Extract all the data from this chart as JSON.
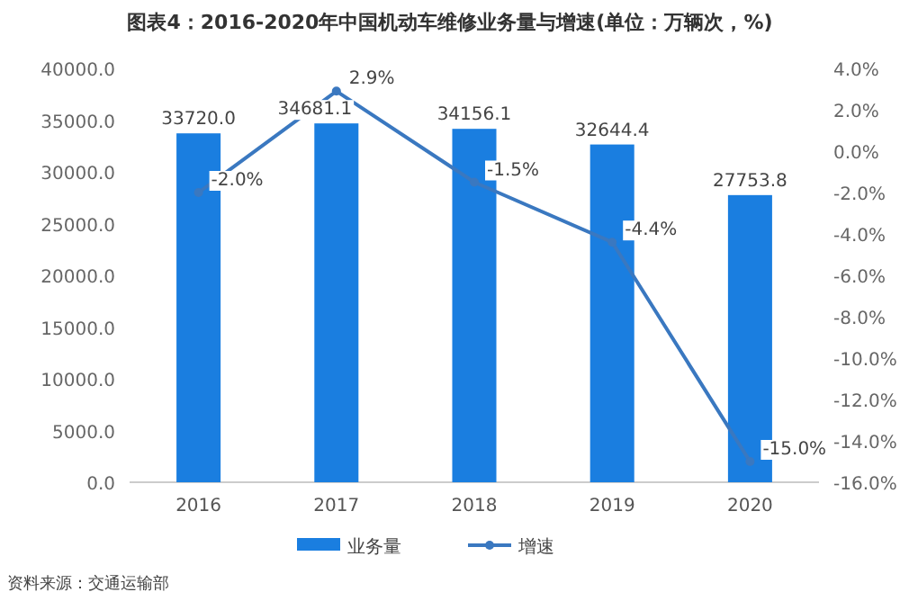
{
  "chart_data": {
    "type": "bar",
    "title": "图表4：2016-2020年中国机动车维修业务量与增速(单位：万辆次，%)",
    "categories": [
      "2016",
      "2017",
      "2018",
      "2019",
      "2020"
    ],
    "series": [
      {
        "name": "业务量",
        "color": "#1a7ee0",
        "values": [
          33720.0,
          34681.1,
          34156.1,
          32644.4,
          27753.8
        ],
        "value_labels": [
          "33720.0",
          "34681.1",
          "34156.1",
          "32644.4",
          "27753.8"
        ]
      },
      {
        "name": "增速",
        "type": "line",
        "axis": "y2",
        "color": "#3a78c0",
        "marker": "circle",
        "values": [
          -2.0,
          2.9,
          -1.5,
          -4.4,
          -15.0
        ],
        "value_labels": [
          "-2.0%",
          "2.9%",
          "-1.5%",
          "-4.4%",
          "-15.0%"
        ]
      }
    ],
    "ylim": [
      0,
      40000
    ],
    "yticks": [
      {
        "value": 0,
        "label": "0.0"
      },
      {
        "value": 5000,
        "label": "5000.0"
      },
      {
        "value": 10000,
        "label": "10000.0"
      },
      {
        "value": 15000,
        "label": "15000.0"
      },
      {
        "value": 20000,
        "label": "20000.0"
      },
      {
        "value": 25000,
        "label": "25000.0"
      },
      {
        "value": 30000,
        "label": "30000.0"
      },
      {
        "value": 35000,
        "label": "35000.0"
      },
      {
        "value": 40000,
        "label": "40000.0"
      }
    ],
    "y2lim": [
      -16,
      4
    ],
    "y2ticks": [
      {
        "value": -16,
        "label": "-16.0%"
      },
      {
        "value": -14,
        "label": "-14.0%"
      },
      {
        "value": -12,
        "label": "-12.0%"
      },
      {
        "value": -10,
        "label": "-10.0%"
      },
      {
        "value": -8,
        "label": "-8.0%"
      },
      {
        "value": -6,
        "label": "-6.0%"
      },
      {
        "value": -4,
        "label": "-4.0%"
      },
      {
        "value": -2,
        "label": "-2.0%"
      },
      {
        "value": 0,
        "label": "0.0%"
      },
      {
        "value": 2,
        "label": "2.0%"
      },
      {
        "value": 4,
        "label": "4.0%"
      }
    ],
    "legend": "bottom",
    "annotations": [
      "资料来源：交通运输部"
    ]
  }
}
